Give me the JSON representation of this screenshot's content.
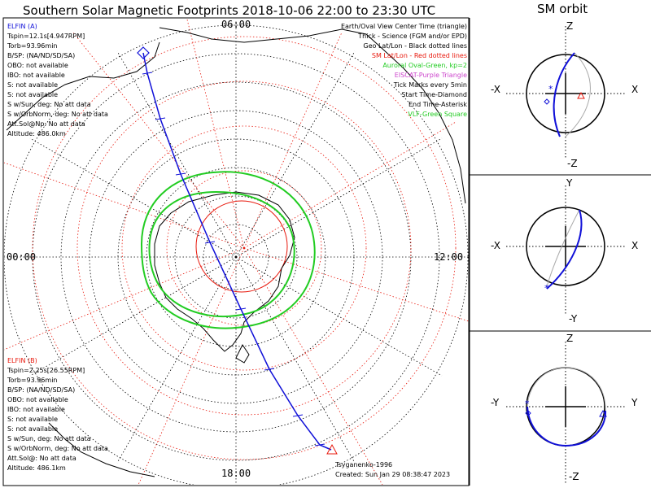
{
  "title": "Southern Solar Magnetic Footprints 2018-10-06 22:00 to 23:30 UTC",
  "orbit_title": "SM orbit",
  "elfin_a": {
    "title": "ELFIN (A)",
    "color": "#1010d8",
    "lines": [
      "Tspin=12.1s[4.947RPM]",
      "Torb=93.96min",
      "B/SP: (NA/ND/SD/SA)",
      "OBO: not available",
      "IBO: not available",
      "S: not available",
      "S: not available",
      "S w/Sun, deg: No att data",
      "S w/OrbNorm, deg: No att data",
      "Att.Sol@Np: No att data",
      "Altitude: 486.0km"
    ]
  },
  "elfin_b": {
    "title": "ELFIN (B)",
    "color": "#e8180c",
    "lines": [
      "Tspin=2.25s[26.55RPM]",
      "Torb=93.96min",
      "B/SP: (NA/ND/SD/SA)",
      "OBO: not available",
      "IBO: not available",
      "S: not available",
      "S: not available",
      "S w/Sun, deg: No att data",
      "S w/OrbNorm, deg: No att data",
      "Att.Sol@: No att data",
      "Altitude: 486.1km"
    ]
  },
  "legend": [
    {
      "text": "Earth/Oval View Center Time (triangle)",
      "color": "#000000"
    },
    {
      "text": "Thick - Science (FGM and/or EPD)",
      "color": "#000000"
    },
    {
      "text": "Geo Lat/Lon - Black dotted lines",
      "color": "#000000"
    },
    {
      "text": "SM Lat/Lon - Red dotted lines",
      "color": "#e8180c"
    },
    {
      "text": "Auroral Oval-Green, kp=2",
      "color": "#22cc22"
    },
    {
      "text": "EISCAT-Purple Triangle",
      "color": "#cc44cc"
    },
    {
      "text": "Tick Marks every 5min",
      "color": "#000000"
    },
    {
      "text": "Start Time-Diamond",
      "color": "#000000"
    },
    {
      "text": "End Time-Asterisk",
      "color": "#000000"
    },
    {
      "text": "VLF-Green Square",
      "color": "#22cc22"
    }
  ],
  "map_labels": {
    "top": "06:00",
    "left": "00:00",
    "right": "12:00",
    "bottom": "18:00"
  },
  "footer": {
    "model": "Tsyganenko-1996",
    "created": "Created: Sun Jan 29 08:38:47 2023"
  },
  "panels": [
    {
      "top": "Z",
      "bottom": "-Z",
      "left": "-X",
      "right": "X"
    },
    {
      "top": "Y",
      "bottom": "-Y",
      "left": "-X",
      "right": "X"
    },
    {
      "top": "Z",
      "bottom": "-Z",
      "left": "-Y",
      "right": "Y"
    }
  ],
  "colors": {
    "track": "#1010d8",
    "oval": "#22cc22",
    "sm_grid": "#e8180c",
    "grid": "#000000",
    "orbit_gray": "#aaaaaa"
  }
}
